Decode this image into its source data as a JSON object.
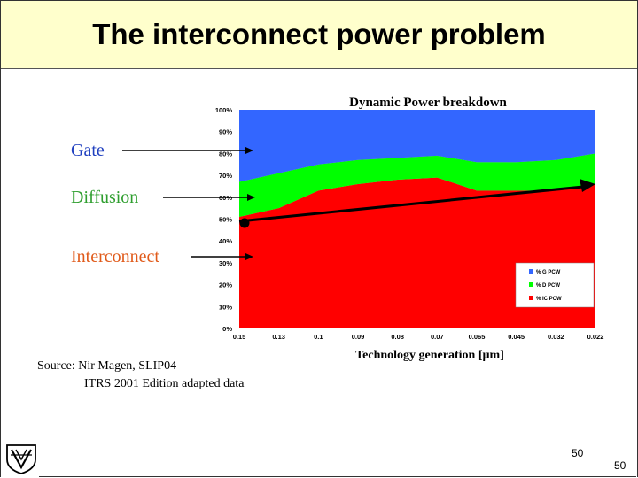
{
  "slide": {
    "title": "The interconnect power problem",
    "source_line1": "Source: Nir  Magen,  SLIP04",
    "source_line2": "ITRS 2001 Edition adapted data",
    "page_number": "50",
    "page_number_corner": "50"
  },
  "callouts": [
    {
      "label": "Gate",
      "color": "#1f3fbf"
    },
    {
      "label": "Diffusion",
      "color": "#2e9e2e"
    },
    {
      "label": "Interconnect",
      "color": "#e05a1a"
    }
  ],
  "chart_data": {
    "type": "area",
    "stacked": true,
    "title": "Dynamic Power breakdown",
    "xlabel": "Technology generation [µm]",
    "ylabel": "",
    "categories": [
      "0.15",
      "0.13",
      "0.1",
      "0.09",
      "0.08",
      "0.07",
      "0.065",
      "0.045",
      "0.032",
      "0.022"
    ],
    "ylim": [
      0,
      100
    ],
    "y_ticks": [
      "0%",
      "10%",
      "20%",
      "30%",
      "40%",
      "50%",
      "60%",
      "70%",
      "80%",
      "90%",
      "100%"
    ],
    "legend_position": "bottom-right",
    "series": [
      {
        "name": "% IC PCW",
        "color": "#ff0000",
        "values": [
          51,
          55,
          63,
          66,
          68,
          69,
          63,
          63,
          63,
          66
        ]
      },
      {
        "name": "% D PCW",
        "color": "#00ff00",
        "values": [
          16,
          16,
          12,
          11,
          10,
          10,
          13,
          13,
          14,
          14
        ]
      },
      {
        "name": "% G PCW",
        "color": "#3366ff",
        "values": [
          33,
          29,
          25,
          23,
          22,
          21,
          24,
          24,
          23,
          20
        ]
      }
    ],
    "trend_line": {
      "from": [
        "0.15",
        49
      ],
      "to": [
        "0.022",
        66
      ]
    }
  }
}
